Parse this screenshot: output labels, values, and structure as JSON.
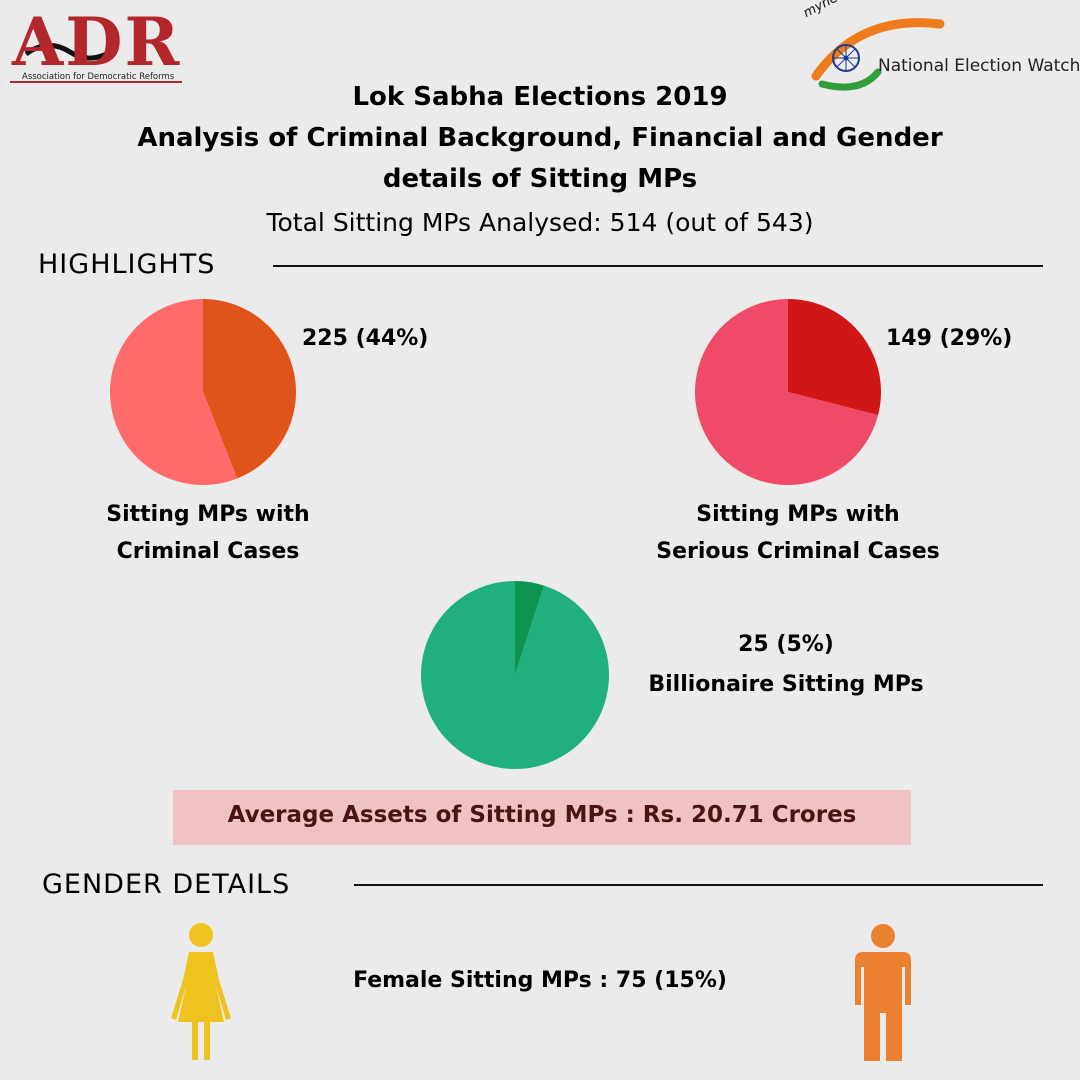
{
  "logos": {
    "adr": {
      "letters": "ADR",
      "subtitle": "Association for Democratic Reforms",
      "color": "#b3262b"
    },
    "myneta": {
      "site": "myneta.info",
      "name": "National Election Watch"
    }
  },
  "header": {
    "title_line1": "Lok Sabha Elections 2019",
    "title_line2": "Analysis of Criminal Background, Financial and Gender",
    "title_line3": "details of Sitting MPs",
    "total_line": "Total Sitting MPs Analysed: 514 (out of 543)"
  },
  "sections": {
    "highlights": "HIGHLIGHTS",
    "gender": "GENDER DETAILS"
  },
  "chart_data": [
    {
      "type": "pie",
      "value_label": "225 (44%)",
      "label_line1": "Sitting MPs with",
      "label_line2": "Criminal Cases",
      "slices": [
        {
          "value": 44,
          "color": "#e0531a"
        },
        {
          "value": 56,
          "color": "#ff6b6b"
        }
      ]
    },
    {
      "type": "pie",
      "value_label": "149 (29%)",
      "label_line1": "Sitting MPs with",
      "label_line2": "Serious Criminal Cases",
      "slices": [
        {
          "value": 29,
          "color": "#cf1717"
        },
        {
          "value": 71,
          "color": "#ef4a68"
        }
      ]
    },
    {
      "type": "pie",
      "value_label": "25 (5%)",
      "label_line1": "Billionaire Sitting MPs",
      "slices": [
        {
          "value": 5,
          "color": "#0e9452"
        },
        {
          "value": 95,
          "color": "#1fb07e"
        }
      ]
    }
  ],
  "assets": {
    "text": "Average Assets of Sitting MPs : Rs. 20.71 Crores"
  },
  "gender": {
    "female_text": "Female Sitting MPs : 75 (15%)",
    "female_icon": "female-person-icon",
    "male_icon": "male-person-icon",
    "female_color": "#efc31f",
    "male_color": "#ec8031"
  }
}
